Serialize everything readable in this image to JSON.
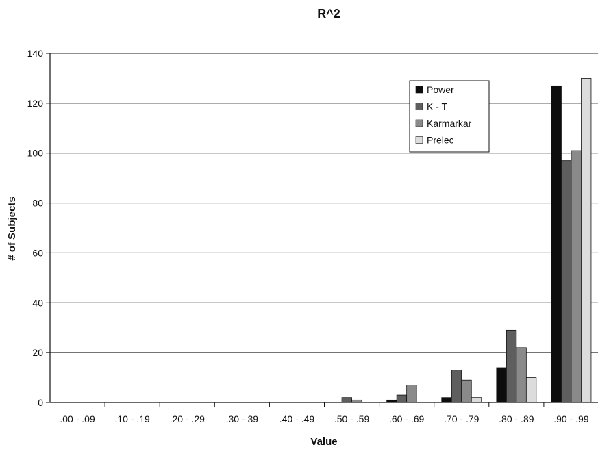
{
  "chart_data": {
    "type": "bar",
    "title": "R^2",
    "xlabel": "Value",
    "ylabel": "# of Subjects",
    "ylim": [
      0,
      140
    ],
    "yticks": [
      0,
      20,
      40,
      60,
      80,
      100,
      120,
      140
    ],
    "grid": true,
    "legend_position": "top-right",
    "categories": [
      ".00 - .09",
      ".10 - .19",
      ".20 - .29",
      ".30 - 39",
      ".40 - .49",
      ".50 - .59",
      ".60 - .69",
      ".70 - .79",
      ".80 - .89",
      ".90 - .99"
    ],
    "series": [
      {
        "name": "Power",
        "color": "#0d0d0d",
        "values": [
          0,
          0,
          0,
          0,
          0,
          0,
          1,
          2,
          14,
          127
        ]
      },
      {
        "name": "K - T",
        "color": "#5e5e5e",
        "values": [
          0,
          0,
          0,
          0,
          0,
          2,
          3,
          13,
          29,
          97
        ]
      },
      {
        "name": "Karmarkar",
        "color": "#8a8a8a",
        "values": [
          0,
          0,
          0,
          0,
          0,
          1,
          7,
          9,
          22,
          101
        ]
      },
      {
        "name": "Prelec",
        "color": "#dcdcdc",
        "values": [
          0,
          0,
          0,
          0,
          0,
          0,
          0,
          2,
          10,
          130
        ]
      }
    ]
  }
}
